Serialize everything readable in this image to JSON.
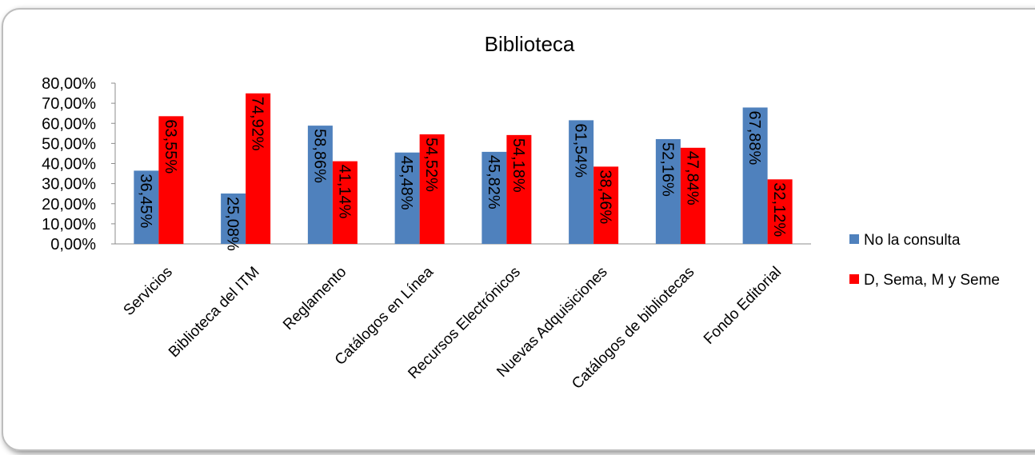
{
  "chart_data": {
    "type": "bar",
    "title": "Biblioteca",
    "categories": [
      "Servicios",
      "Biblioteca del ITM",
      "Reglamento",
      "Catálogos en Línea",
      "Recursos Electrónicos",
      "Nuevas Adquisiciones",
      "Catálogos de bibliotecas",
      "Fondo Editorial"
    ],
    "series": [
      {
        "name": "No la consulta",
        "color": "#4f81bd",
        "values": [
          36.45,
          25.08,
          58.86,
          45.48,
          45.82,
          61.54,
          52.16,
          67.88
        ],
        "labels": [
          "36,45%",
          "25,08%",
          "58,86%",
          "45,48%",
          "45,82%",
          "61,54%",
          "52,16%",
          "67,88%"
        ]
      },
      {
        "name": "D, Sema, M y Seme",
        "color": "#ff0000",
        "values": [
          63.55,
          74.92,
          41.14,
          54.52,
          54.18,
          38.46,
          47.84,
          32.12
        ],
        "labels": [
          "63,55%",
          "74,92%",
          "41,14%",
          "54,52%",
          "54,18%",
          "38,46%",
          "47,84%",
          "32,12%"
        ]
      }
    ],
    "yticks": [
      "0,00%",
      "10,00%",
      "20,00%",
      "30,00%",
      "40,00%",
      "50,00%",
      "60,00%",
      "70,00%",
      "80,00%"
    ],
    "ylim": [
      0,
      80
    ],
    "xlabel": "",
    "ylabel": "",
    "grid": false,
    "legend_position": "right"
  }
}
